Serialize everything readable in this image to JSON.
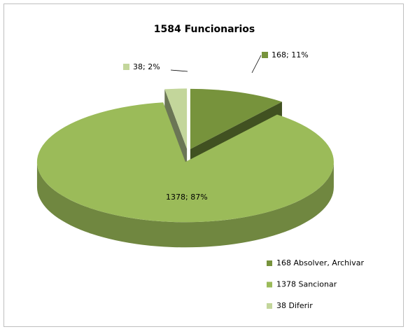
{
  "chart_data": {
    "type": "pie",
    "title": "1584 Funcionarios",
    "categories": [
      "168 Absolver, Archivar",
      "1378 Sancionar",
      "38 Diferir"
    ],
    "values": [
      168,
      1378,
      38
    ],
    "value_labels": [
      "168; 11%",
      "1378; 87%",
      "38; 2%"
    ],
    "colors": [
      "#77933c",
      "#9bbb59",
      "#c3d69b"
    ],
    "legend": "right"
  }
}
